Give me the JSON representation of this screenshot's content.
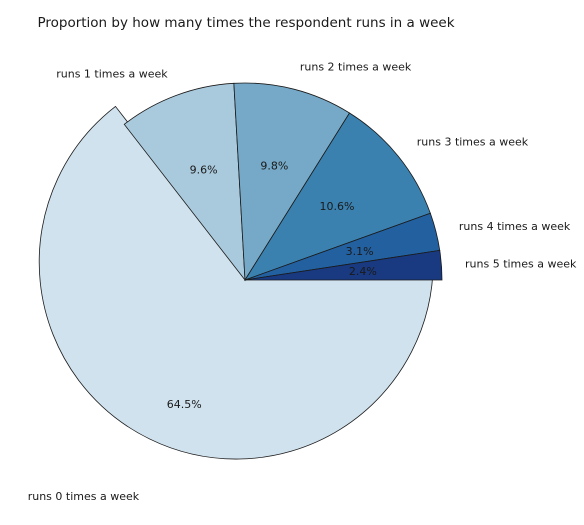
{
  "chart_data": {
    "type": "pie",
    "title": "Proportion by how many times the respondent runs in a week",
    "categories": [
      "runs 0 times a week",
      "runs 1 times a week",
      "runs 2 times a week",
      "runs 3 times a week",
      "runs 4 times a week",
      "runs 5 times a week"
    ],
    "values": [
      64.5,
      9.6,
      9.8,
      10.6,
      3.1,
      2.4
    ],
    "data_labels": [
      "64.5%",
      "9.6%",
      "9.8%",
      "10.6%",
      "3.1%",
      "2.4%"
    ],
    "colors": [
      "#d0e2ee",
      "#a9c9dc",
      "#75a9c7",
      "#3b81b0",
      "#2360a0",
      "#193a80"
    ],
    "exploded": [
      true,
      false,
      false,
      false,
      false,
      false
    ],
    "start_angle_deg": 0,
    "direction": "clockwise",
    "legend": "none"
  }
}
